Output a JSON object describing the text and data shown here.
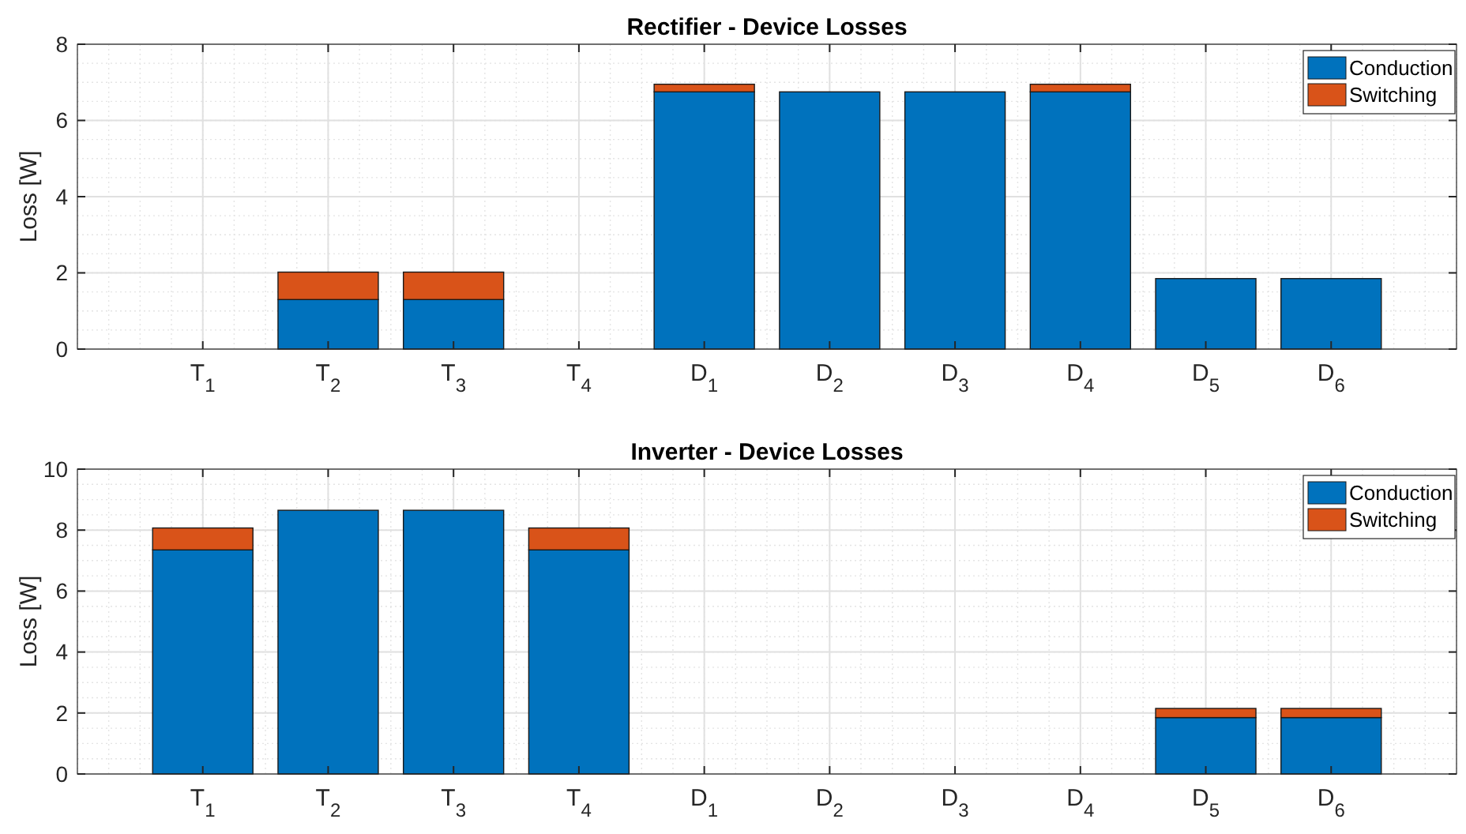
{
  "chart_data": [
    {
      "type": "bar",
      "title": "Rectifier - Device Losses",
      "ylabel": "Loss [W]",
      "stacked": true,
      "legend": "top right",
      "grid": true,
      "ylim": [
        0,
        8
      ],
      "yticks": [
        0,
        2,
        4,
        6,
        8
      ],
      "categories": [
        "T$_{1}$",
        "T$_{2}$",
        "T$_{3}$",
        "T$_{4}$",
        "D$_{1}$",
        "D$_{2}$",
        "D$_{3}$",
        "D$_{4}$",
        "D$_{5}$",
        "D$_{6}$"
      ],
      "series": [
        {
          "name": "Conduction",
          "color": "#0072bd",
          "values": [
            0,
            1.3,
            1.3,
            0,
            6.75,
            6.75,
            6.75,
            6.75,
            1.85,
            1.85
          ]
        },
        {
          "name": "Switching",
          "color": "#d95319",
          "values": [
            0,
            0.72,
            0.72,
            0,
            0.2,
            0,
            0,
            0.2,
            0,
            0
          ]
        }
      ]
    },
    {
      "type": "bar",
      "title": "Inverter - Device Losses",
      "ylabel": "Loss [W]",
      "stacked": true,
      "legend": "top right",
      "grid": true,
      "ylim": [
        0,
        10
      ],
      "yticks": [
        0,
        2,
        4,
        6,
        8,
        10
      ],
      "categories": [
        "T$_{1}$",
        "T$_{2}$",
        "T$_{3}$",
        "T$_{4}$",
        "D$_{1}$",
        "D$_{2}$",
        "D$_{3}$",
        "D$_{4}$",
        "D$_{5}$",
        "D$_{6}$"
      ],
      "series": [
        {
          "name": "Conduction",
          "color": "#0072bd",
          "values": [
            7.35,
            8.65,
            8.65,
            7.35,
            0,
            0,
            0,
            0,
            1.85,
            1.85
          ]
        },
        {
          "name": "Switching",
          "color": "#d95319",
          "values": [
            0.72,
            0,
            0,
            0.72,
            0,
            0,
            0,
            0,
            0.3,
            0.3
          ]
        }
      ]
    }
  ]
}
